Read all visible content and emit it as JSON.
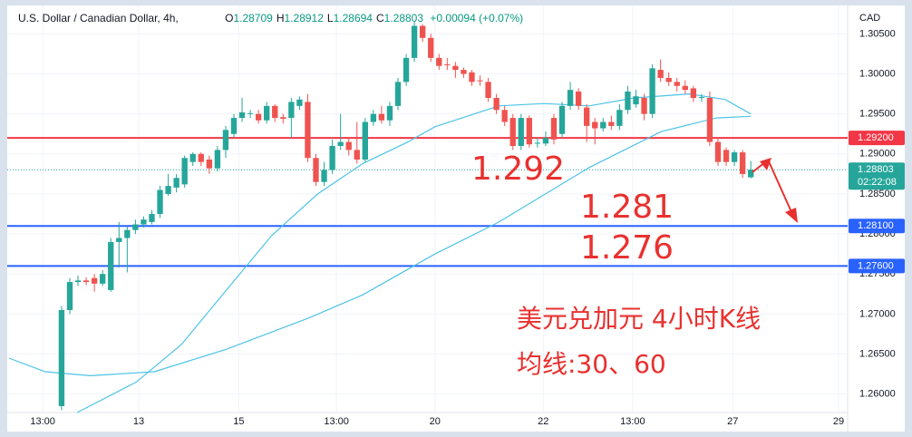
{
  "chart_data": {
    "type": "candlestick",
    "title": "U.S. Dollar / Canadian Dollar, 4h,",
    "ohlc_header": [
      {
        "label": "O",
        "value": 1.28709
      },
      {
        "label": "H",
        "value": 1.28912
      },
      {
        "label": "L",
        "value": 1.28694
      },
      {
        "label": "C",
        "value": 1.28803
      }
    ],
    "change": "+0.00094 (+0.07%)",
    "currency": "CAD",
    "up_color": "#26a69a",
    "down_color": "#ef5350",
    "open": [
      1.2585,
      1.2705,
      1.274,
      1.2742,
      1.2745,
      1.2738,
      1.273,
      1.279,
      1.2795,
      1.2805,
      1.2812,
      1.2815,
      1.2825,
      1.285,
      1.2858,
      1.2862,
      1.289,
      1.29,
      1.2893,
      1.2882,
      1.2905,
      1.2925,
      1.2945,
      1.295,
      1.295,
      1.2942,
      1.296,
      1.2946,
      1.2945,
      1.296,
      1.2965,
      1.2895,
      1.2865,
      1.288,
      1.291,
      1.2915,
      1.2905,
      1.2893,
      1.294,
      1.295,
      1.2942,
      1.296,
      1.299,
      1.302,
      1.306,
      1.3045,
      1.302,
      1.3012,
      1.301,
      1.3005,
      1.3002,
      1.2992,
      1.299,
      1.297,
      1.2955,
      1.2945,
      1.291,
      1.2945,
      1.2913,
      1.2913,
      1.2945,
      1.2925,
      1.296,
      1.2978,
      1.2958,
      1.294,
      1.2932,
      1.294,
      1.2935,
      1.2955,
      1.2962,
      1.297,
      1.295,
      1.3005,
      1.2995,
      1.299,
      1.2985,
      1.2982,
      1.297,
      1.297,
      1.2915,
      1.2905,
      1.289,
      1.2902,
      1.28709
    ],
    "high": [
      1.271,
      1.2745,
      1.2748,
      1.2746,
      1.275,
      1.2755,
      1.2795,
      1.2815,
      1.281,
      1.2818,
      1.2822,
      1.283,
      1.286,
      1.2875,
      1.2875,
      1.2898,
      1.2902,
      1.2902,
      1.2898,
      1.291,
      1.2935,
      1.295,
      1.297,
      1.2955,
      1.2955,
      1.2965,
      1.2962,
      1.295,
      1.297,
      1.2972,
      1.2975,
      1.29,
      1.289,
      1.2918,
      1.295,
      1.292,
      1.294,
      1.2945,
      1.2955,
      1.296,
      1.2965,
      1.2995,
      1.3025,
      1.3065,
      1.3062,
      1.305,
      1.3025,
      1.302,
      1.3015,
      1.3008,
      1.3005,
      1.2998,
      1.2995,
      1.2975,
      1.296,
      1.295,
      1.295,
      1.2948,
      1.292,
      1.2928,
      1.295,
      1.2965,
      1.299,
      1.2982,
      1.2962,
      1.2945,
      1.2945,
      1.2948,
      1.2962,
      1.2985,
      1.298,
      1.2975,
      1.3012,
      1.3018,
      1.3002,
      1.2995,
      1.2992,
      1.2985,
      1.2975,
      1.2978,
      1.292,
      1.2908,
      1.2905,
      1.2905,
      1.28912
    ],
    "low": [
      1.258,
      1.27,
      1.2735,
      1.2736,
      1.2728,
      1.2735,
      1.2728,
      1.2758,
      1.2752,
      1.28,
      1.2808,
      1.2812,
      1.282,
      1.2848,
      1.2852,
      1.2858,
      1.2885,
      1.2885,
      1.2875,
      1.2878,
      1.2895,
      1.292,
      1.294,
      1.2945,
      1.2938,
      1.2938,
      1.294,
      1.2938,
      1.292,
      1.2955,
      1.289,
      1.286,
      1.286,
      1.2875,
      1.2905,
      1.2898,
      1.2888,
      1.289,
      1.2935,
      1.2938,
      1.2935,
      1.2955,
      1.2985,
      1.3015,
      1.304,
      1.3015,
      1.3005,
      1.3005,
      1.2995,
      1.2995,
      1.2985,
      1.2985,
      1.2965,
      1.295,
      1.2935,
      1.2905,
      1.2905,
      1.2908,
      1.2908,
      1.291,
      1.2912,
      1.292,
      1.2955,
      1.2955,
      1.2915,
      1.2912,
      1.2928,
      1.293,
      1.293,
      1.295,
      1.2958,
      1.2942,
      1.2945,
      1.299,
      1.2985,
      1.2978,
      1.2975,
      1.2965,
      1.2965,
      1.291,
      1.2885,
      1.2885,
      1.2885,
      1.287,
      1.28694
    ],
    "close": [
      1.2705,
      1.274,
      1.2742,
      1.274,
      1.2738,
      1.275,
      1.279,
      1.2795,
      1.2805,
      1.2812,
      1.2818,
      1.2825,
      1.2855,
      1.286,
      1.287,
      1.2895,
      1.29,
      1.289,
      1.2882,
      1.2905,
      1.293,
      1.2945,
      1.2952,
      1.2951,
      1.2942,
      1.296,
      1.2945,
      1.2944,
      1.2965,
      1.2968,
      1.2895,
      1.2865,
      1.288,
      1.291,
      1.2915,
      1.2905,
      1.2893,
      1.294,
      1.295,
      1.2942,
      1.296,
      1.299,
      1.302,
      1.306,
      1.3045,
      1.302,
      1.301,
      1.3011,
      1.3005,
      1.3,
      1.299,
      1.2991,
      1.297,
      1.2955,
      1.294,
      1.291,
      1.2945,
      1.2912,
      1.2914,
      1.292,
      1.2918,
      1.296,
      1.298,
      1.296,
      1.2935,
      1.2932,
      1.294,
      1.2935,
      1.2955,
      1.2978,
      1.2972,
      1.295,
      1.3007,
      1.2995,
      1.299,
      1.2985,
      1.298,
      1.297,
      1.2971,
      1.2915,
      1.289,
      1.289,
      1.2902,
      1.2875,
      1.28803
    ],
    "ma_lines": [
      {
        "color": "#4dc3e8",
        "x": [
          1.9,
          9.1,
          14.6,
          20.1,
          25.6,
          31.2,
          36.7,
          42.2,
          45.5,
          53.3,
          58.8,
          64.3,
          69.8,
          76.5,
          80.9,
          84
        ],
        "values": [
          1.2577,
          1.2615,
          1.2662,
          1.273,
          1.2798,
          1.285,
          1.2888,
          1.2915,
          1.2934,
          1.296,
          1.2963,
          1.296,
          1.297,
          1.2975,
          1.2968,
          1.295
        ]
      },
      {
        "color": "#4dc3e8",
        "x": [
          -6.4,
          -2,
          3.5,
          11.3,
          20.1,
          30.1,
          36.7,
          45.5,
          53.3,
          64.3,
          73.1,
          79.8,
          84
        ],
        "values": [
          1.2645,
          1.2628,
          1.2623,
          1.2628,
          1.2656,
          1.2695,
          1.2724,
          1.2775,
          1.2815,
          1.2883,
          1.2928,
          1.2945,
          1.2947
        ]
      }
    ],
    "levels": [
      {
        "value": 1.292,
        "label": "1.29200",
        "color": "#f23645"
      },
      {
        "value": 1.281,
        "label": "1.28100",
        "color": "#2962ff"
      },
      {
        "value": 1.276,
        "label": "1.27600",
        "color": "#2962ff"
      }
    ],
    "current_price": {
      "value": 1.28803,
      "countdown": "02:22:08"
    },
    "ylim": [
      1.2577,
      1.3081
    ],
    "yticks": [
      {
        "value": 1.26,
        "label": "1.26000"
      },
      {
        "value": 1.265,
        "label": "1.26500"
      },
      {
        "value": 1.27,
        "label": "1.27000"
      },
      {
        "value": 1.275,
        "label": "1.27500"
      },
      {
        "value": 1.28,
        "label": "1.28000"
      },
      {
        "value": 1.285,
        "label": "1.28500"
      },
      {
        "value": 1.29,
        "label": "1.29000"
      },
      {
        "value": 1.295,
        "label": "1.29500"
      },
      {
        "value": 1.3,
        "label": "1.30000"
      },
      {
        "value": 1.305,
        "label": "1.30500"
      }
    ],
    "xlim": [
      -6.4,
      95.8
    ],
    "xticks": [
      {
        "value": -2.3,
        "label": "13:00"
      },
      {
        "value": 9.4,
        "label": "13"
      },
      {
        "value": 21.6,
        "label": "15"
      },
      {
        "value": 33.5,
        "label": "13:00"
      },
      {
        "value": 45.5,
        "label": "20"
      },
      {
        "value": 58.7,
        "label": "22"
      },
      {
        "value": 69.6,
        "label": "13:00"
      },
      {
        "value": 81.8,
        "label": "27"
      },
      {
        "value": 94.7,
        "label": "29"
      }
    ],
    "grid": true,
    "annotations": [
      "1.292",
      "1.281",
      "1.276",
      "美元兑加元 4小时K线",
      "均线:30、60"
    ]
  }
}
